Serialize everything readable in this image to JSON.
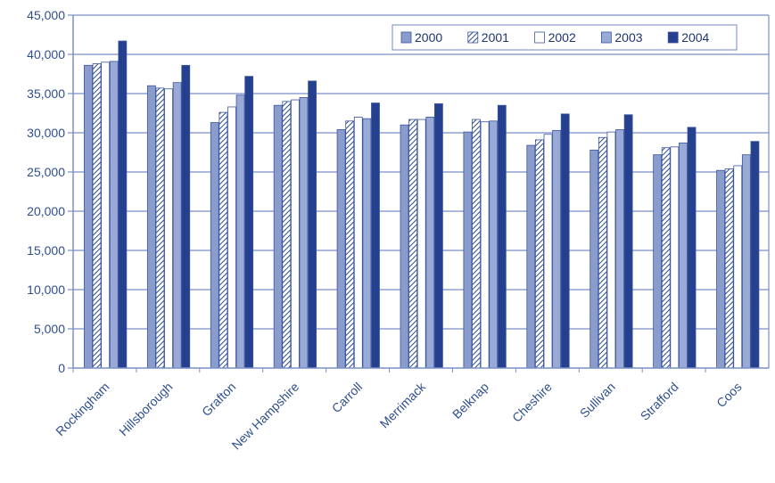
{
  "chart_data": {
    "type": "bar",
    "title": "",
    "xlabel": "",
    "ylabel": "",
    "ylim": [
      0,
      45000
    ],
    "yticks": [
      "0",
      "5,000",
      "10,000",
      "15,000",
      "20,000",
      "25,000",
      "30,000",
      "35,000",
      "40,000",
      "45,000"
    ],
    "grid": true,
    "legend_position": "top-right",
    "categories": [
      "Rockingham",
      "Hillsborough",
      "Grafton",
      "New Hampshire",
      "Carroll",
      "Merrimack",
      "Belknap",
      "Cheshire",
      "Sullivan",
      "Strafford",
      "Coos"
    ],
    "series": [
      {
        "name": "2000",
        "values": [
          38600,
          36000,
          31300,
          33500,
          30400,
          31000,
          30100,
          28400,
          27800,
          27200,
          25200
        ]
      },
      {
        "name": "2001",
        "values": [
          38800,
          35700,
          32600,
          34000,
          31500,
          31700,
          31700,
          29100,
          29400,
          28100,
          25400
        ]
      },
      {
        "name": "2002",
        "values": [
          39000,
          35600,
          33300,
          34200,
          32000,
          31700,
          31400,
          29800,
          30100,
          28200,
          25800
        ]
      },
      {
        "name": "2003",
        "values": [
          39100,
          36400,
          34800,
          34500,
          31800,
          32000,
          31500,
          30300,
          30400,
          28700,
          27200
        ]
      },
      {
        "name": "2004",
        "values": [
          41700,
          38600,
          37200,
          36600,
          33800,
          33700,
          33500,
          32400,
          32300,
          30700,
          28900
        ]
      }
    ],
    "colors": {
      "2000": "#8a9ccc",
      "2001": "#ffffff",
      "2002": "#ffffff",
      "2003": "#9aaad6",
      "2004": "#24408e",
      "axis": "#7b8fc6",
      "grid": "#7b8fc6",
      "text": "#2f4f8f"
    }
  }
}
